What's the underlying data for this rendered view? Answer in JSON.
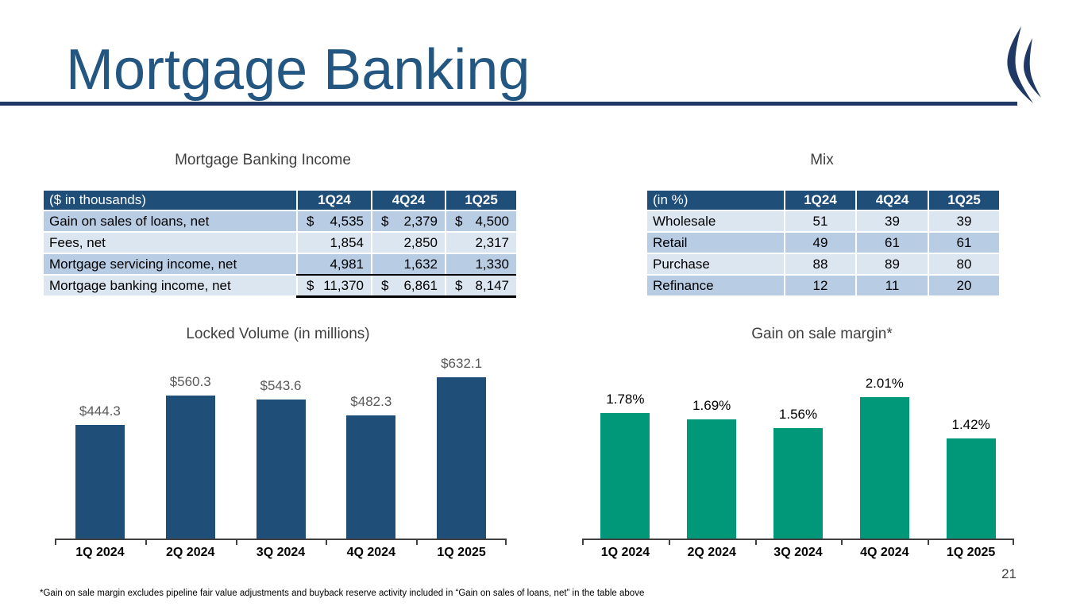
{
  "slide": {
    "title": "Mortgage Banking",
    "page_number": "21",
    "footnote": "*Gain on sale margin excludes pipeline fair value adjustments and buyback reserve activity included in “Gain on sales of loans, net” in the table above"
  },
  "colors": {
    "navy_accent": "#1F4E79",
    "rule_navy": "#1F3864",
    "title_blue": "#235781",
    "table_row_medium": "#B8CCE4",
    "table_row_light": "#DCE6F1",
    "green_bar": "#009878",
    "gray_data_label": "#595959"
  },
  "income_table": {
    "title": "Mortgage Banking Income",
    "header": [
      "($ in thousands)",
      "1Q24",
      "4Q24",
      "1Q25"
    ],
    "rows": [
      {
        "label": "Gain on sales of loans, net",
        "dollar": true,
        "values": [
          "4,535",
          "2,379",
          "4,500"
        ],
        "shade": "medium"
      },
      {
        "label": "Fees, net",
        "dollar": false,
        "values": [
          "1,854",
          "2,850",
          "2,317"
        ],
        "shade": "light"
      },
      {
        "label": "Mortgage servicing income, net",
        "dollar": false,
        "values": [
          "4,981",
          "1,632",
          "1,330"
        ],
        "shade": "medium"
      },
      {
        "label": "Mortgage banking income, net",
        "dollar": true,
        "values": [
          "11,370",
          "6,861",
          "8,147"
        ],
        "shade": "light",
        "total": true
      }
    ]
  },
  "mix_table": {
    "title": "Mix",
    "header": [
      "(in %)",
      "1Q24",
      "4Q24",
      "1Q25"
    ],
    "rows": [
      {
        "label": "Wholesale",
        "values": [
          "51",
          "39",
          "39"
        ],
        "shade": "light"
      },
      {
        "label": "Retail",
        "values": [
          "49",
          "61",
          "61"
        ],
        "shade": "medium"
      },
      {
        "label": "Purchase",
        "values": [
          "88",
          "89",
          "80"
        ],
        "shade": "light"
      },
      {
        "label": "Refinance",
        "values": [
          "12",
          "11",
          "20"
        ],
        "shade": "medium"
      }
    ]
  },
  "chart_data": [
    {
      "type": "bar",
      "title": "Locked Volume (in millions)",
      "categories": [
        "1Q 2024",
        "2Q 2024",
        "3Q 2024",
        "4Q 2024",
        "1Q 2025"
      ],
      "values": [
        444.3,
        560.3,
        543.6,
        482.3,
        632.1
      ],
      "data_labels": [
        "$444.3",
        "$560.3",
        "$543.6",
        "$482.3",
        "$632.1"
      ],
      "xlabel": "",
      "ylabel": "",
      "ylim": [
        0,
        740
      ],
      "grid": false,
      "legend": "none",
      "bar_color": "#1F4E79",
      "label_color": "#595959"
    },
    {
      "type": "bar",
      "title": "Gain on sale margin*",
      "categories": [
        "1Q 2024",
        "2Q 2024",
        "3Q 2024",
        "4Q 2024",
        "1Q 2025"
      ],
      "values": [
        1.78,
        1.69,
        1.56,
        2.01,
        1.42
      ],
      "data_labels": [
        "1.78%",
        "1.69%",
        "1.56%",
        "2.01%",
        "1.42%"
      ],
      "xlabel": "",
      "ylabel": "",
      "ylim": [
        0,
        2.68
      ],
      "grid": false,
      "legend": "none",
      "bar_color": "#009878",
      "label_color": "#000000"
    }
  ]
}
